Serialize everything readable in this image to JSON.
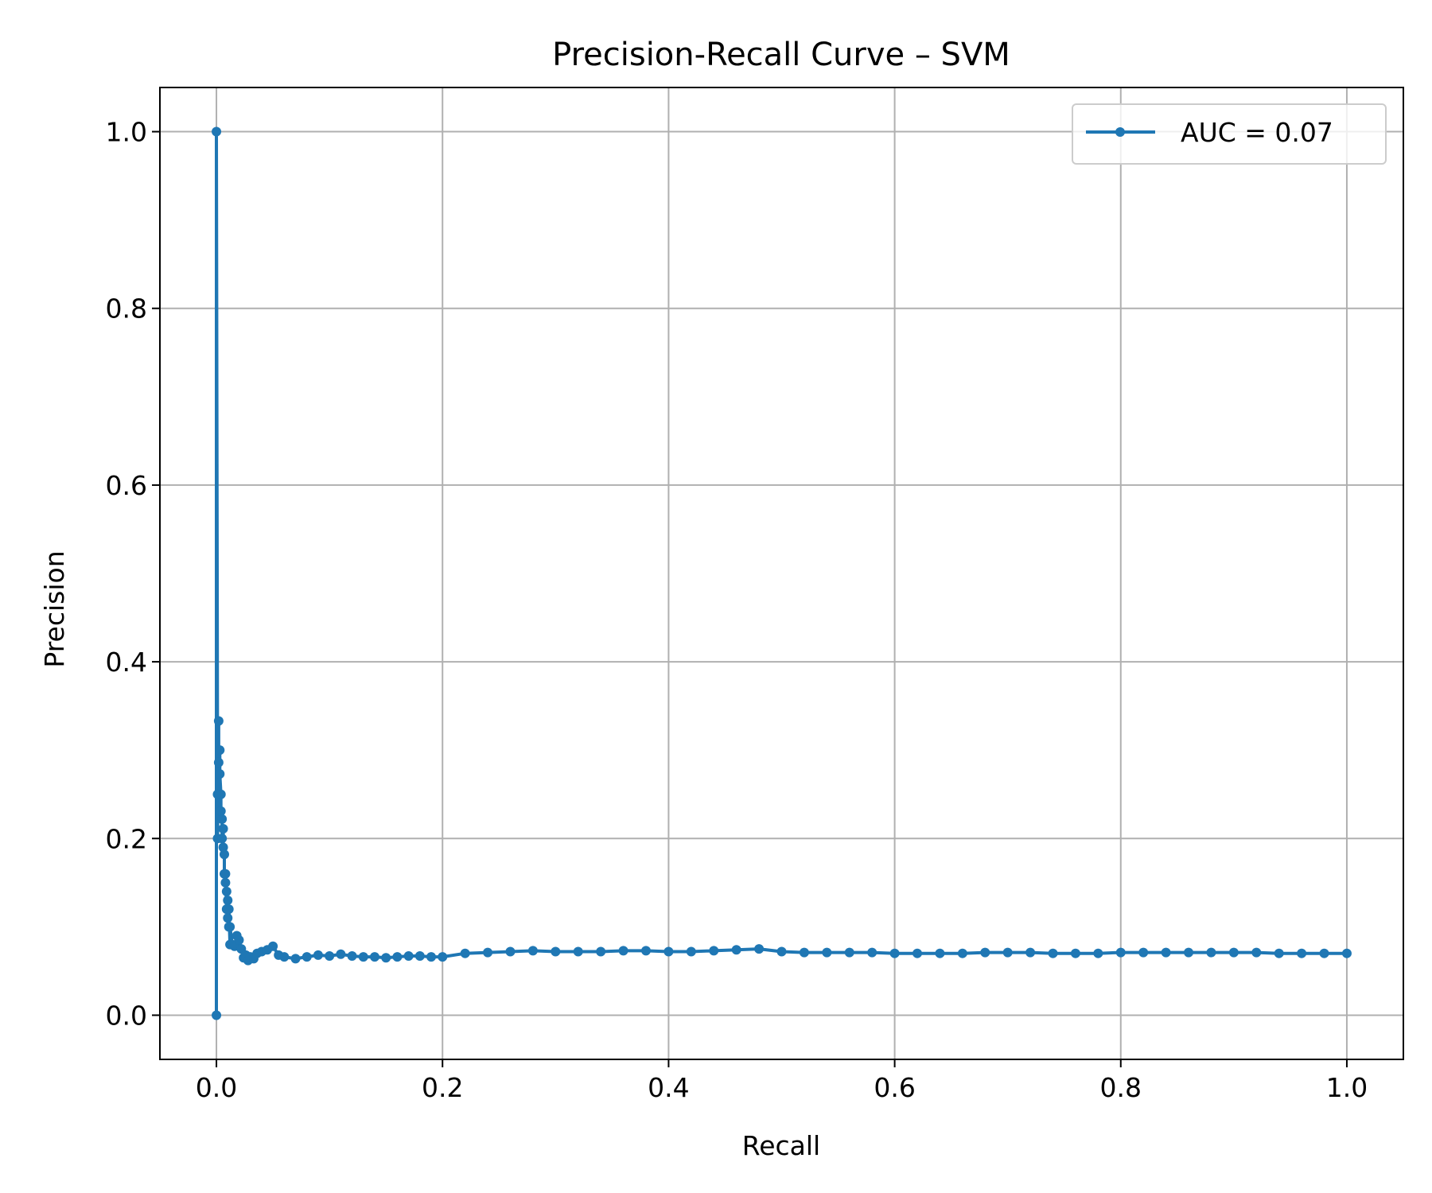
{
  "chart_data": {
    "type": "line",
    "title": "Precision-Recall Curve – SVM",
    "xlabel": "Recall",
    "ylabel": "Precision",
    "xlim": [
      -0.05,
      1.05
    ],
    "ylim": [
      -0.05,
      1.05
    ],
    "xticks": [
      0.0,
      0.2,
      0.4,
      0.6,
      0.8,
      1.0
    ],
    "xtick_labels": [
      "0.0",
      "0.2",
      "0.4",
      "0.6",
      "0.8",
      "1.0"
    ],
    "yticks": [
      0.0,
      0.2,
      0.4,
      0.6,
      0.8,
      1.0
    ],
    "ytick_labels": [
      "0.0",
      "0.2",
      "0.4",
      "0.6",
      "0.8",
      "1.0"
    ],
    "grid": true,
    "legend_position": "top-right",
    "colors": {
      "series": "#1f77b4",
      "grid": "#b0b0b0",
      "axes": "#000000"
    },
    "series": [
      {
        "name": "AUC = 0.07",
        "marker": "circle",
        "x": [
          0.0,
          0.0,
          0.001,
          0.001,
          0.002,
          0.002,
          0.003,
          0.003,
          0.004,
          0.004,
          0.005,
          0.005,
          0.006,
          0.006,
          0.007,
          0.007,
          0.008,
          0.008,
          0.009,
          0.009,
          0.01,
          0.01,
          0.011,
          0.011,
          0.012,
          0.012,
          0.014,
          0.016,
          0.018,
          0.02,
          0.022,
          0.024,
          0.026,
          0.028,
          0.03,
          0.033,
          0.036,
          0.04,
          0.045,
          0.05,
          0.055,
          0.06,
          0.07,
          0.08,
          0.09,
          0.1,
          0.11,
          0.12,
          0.13,
          0.14,
          0.15,
          0.16,
          0.17,
          0.18,
          0.19,
          0.2,
          0.22,
          0.24,
          0.26,
          0.28,
          0.3,
          0.32,
          0.34,
          0.36,
          0.38,
          0.4,
          0.42,
          0.44,
          0.46,
          0.48,
          0.5,
          0.52,
          0.54,
          0.56,
          0.58,
          0.6,
          0.62,
          0.64,
          0.66,
          0.68,
          0.7,
          0.72,
          0.74,
          0.76,
          0.78,
          0.8,
          0.82,
          0.84,
          0.86,
          0.88,
          0.9,
          0.92,
          0.94,
          0.96,
          0.98,
          1.0
        ],
        "y": [
          0.0,
          1.0,
          0.25,
          0.2,
          0.333,
          0.286,
          0.3,
          0.273,
          0.25,
          0.231,
          0.222,
          0.2,
          0.211,
          0.19,
          0.182,
          0.16,
          0.15,
          0.16,
          0.12,
          0.14,
          0.11,
          0.13,
          0.1,
          0.12,
          0.08,
          0.1,
          0.08,
          0.078,
          0.09,
          0.085,
          0.075,
          0.065,
          0.068,
          0.062,
          0.066,
          0.064,
          0.07,
          0.072,
          0.074,
          0.078,
          0.068,
          0.066,
          0.064,
          0.066,
          0.068,
          0.067,
          0.069,
          0.067,
          0.066,
          0.066,
          0.065,
          0.066,
          0.067,
          0.067,
          0.066,
          0.066,
          0.07,
          0.071,
          0.072,
          0.073,
          0.072,
          0.072,
          0.072,
          0.073,
          0.073,
          0.072,
          0.072,
          0.073,
          0.074,
          0.075,
          0.072,
          0.071,
          0.071,
          0.071,
          0.071,
          0.07,
          0.07,
          0.07,
          0.07,
          0.071,
          0.071,
          0.071,
          0.07,
          0.07,
          0.07,
          0.071,
          0.071,
          0.071,
          0.071,
          0.071,
          0.071,
          0.071,
          0.07,
          0.07,
          0.07,
          0.07
        ]
      }
    ]
  }
}
